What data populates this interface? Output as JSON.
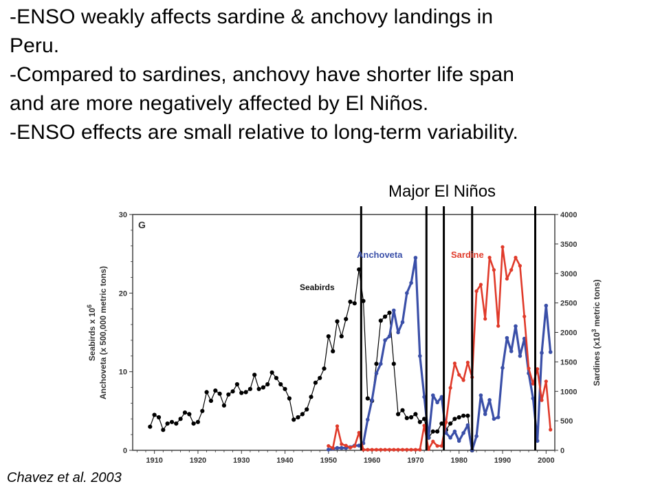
{
  "bullets": [
    "-ENSO weakly affects sardine & anchovy landings in",
    "Peru.",
    "-Compared to sardines, anchovy have shorter life span",
    "and are more negatively affected by El Niños.",
    "-ENSO effects are small relative to long-term variability."
  ],
  "annotation": {
    "el_nino_label": "Major El Niños"
  },
  "citation": "Chavez et al. 2003",
  "chart_data": {
    "type": "line",
    "panel_label": "G",
    "xlabel": "",
    "ylabel_left": "Seabirds x 10⁶ / Anchoveta (x 500,000 metric tons)",
    "ylabel_left_parts": {
      "line1_pre": "Seabirds x 10",
      "line1_sup": "6",
      "line2": "Anchoveta (x 500,000 metric tons)"
    },
    "ylabel_right_parts": {
      "pre": "Sardines (x10",
      "sup": "3",
      "post": " metric tons)"
    },
    "xlim": [
      1905,
      2002
    ],
    "ylim_left": [
      0,
      30
    ],
    "ylim_right": [
      0,
      4000
    ],
    "x_ticks": [
      1910,
      1920,
      1930,
      1940,
      1950,
      1960,
      1970,
      1980,
      1990,
      2000
    ],
    "y_ticks_left": [
      0,
      10,
      20,
      30
    ],
    "y_ticks_right": [
      0,
      500,
      1000,
      1500,
      2000,
      2500,
      3000,
      3500,
      4000
    ],
    "el_nino_years": [
      1957.5,
      1972.5,
      1976.5,
      1983,
      1997.5
    ],
    "series": [
      {
        "name": "Seabirds",
        "axis": "left",
        "color": "#000000",
        "x": [
          1909,
          1910,
          1911,
          1912,
          1913,
          1914,
          1915,
          1916,
          1917,
          1918,
          1919,
          1920,
          1921,
          1922,
          1923,
          1924,
          1925,
          1926,
          1927,
          1928,
          1929,
          1930,
          1931,
          1932,
          1933,
          1934,
          1935,
          1936,
          1937,
          1938,
          1939,
          1940,
          1941,
          1942,
          1943,
          1944,
          1945,
          1946,
          1947,
          1948,
          1949,
          1950,
          1951,
          1952,
          1953,
          1954,
          1955,
          1956,
          1957,
          1958,
          1959,
          1960,
          1961,
          1962,
          1963,
          1964,
          1965,
          1966,
          1967,
          1968,
          1969,
          1970,
          1971,
          1972,
          1973,
          1974,
          1975,
          1976,
          1977,
          1978,
          1979,
          1980,
          1981,
          1982,
          1983
        ],
        "y": [
          3.0,
          4.5,
          4.2,
          2.6,
          3.4,
          3.6,
          3.4,
          4.0,
          4.8,
          4.6,
          3.4,
          3.6,
          5.0,
          7.4,
          6.3,
          7.6,
          7.2,
          5.7,
          7.1,
          7.5,
          8.4,
          7.3,
          7.4,
          7.8,
          9.6,
          7.8,
          8.0,
          8.4,
          9.9,
          9.2,
          8.4,
          7.8,
          6.6,
          3.9,
          4.2,
          4.6,
          5.2,
          6.8,
          8.6,
          9.2,
          10.4,
          14.5,
          12.6,
          16.4,
          14.5,
          16.7,
          18.9,
          18.7,
          23.0,
          19.0,
          6.6,
          6.3,
          11.0,
          16.5,
          17.0,
          17.5,
          11.0,
          4.6,
          5.1,
          4.1,
          4.2,
          4.6,
          3.6,
          4.0,
          1.6,
          2.4,
          2.4,
          3.4,
          2.6,
          3.4,
          4.0,
          4.2,
          4.4,
          4.4,
          0.0
        ]
      },
      {
        "name": "Anchoveta",
        "axis": "left",
        "color": "#3a4fa8",
        "x": [
          1950,
          1951,
          1952,
          1953,
          1954,
          1955,
          1956,
          1957,
          1958,
          1959,
          1960,
          1961,
          1962,
          1963,
          1964,
          1965,
          1966,
          1967,
          1968,
          1969,
          1970,
          1971,
          1972,
          1973,
          1974,
          1975,
          1976,
          1977,
          1978,
          1979,
          1980,
          1981,
          1982,
          1983,
          1984,
          1985,
          1986,
          1987,
          1988,
          1989,
          1990,
          1991,
          1992,
          1993,
          1994,
          1995,
          1996,
          1997,
          1998,
          1999,
          2000,
          2001
        ],
        "y": [
          0.1,
          0.2,
          0.3,
          0.3,
          0.3,
          0.4,
          0.6,
          0.6,
          0.9,
          3.9,
          6.4,
          9.8,
          11.0,
          14.0,
          14.5,
          17.8,
          15.0,
          16.3,
          20.0,
          21.3,
          24.5,
          12.0,
          6.8,
          1.6,
          7.0,
          6.1,
          6.8,
          2.2,
          1.6,
          2.4,
          1.2,
          2.2,
          3.2,
          0.0,
          1.8,
          7.0,
          4.6,
          6.4,
          4.0,
          4.2,
          10.5,
          14.3,
          12.6,
          15.8,
          12.0,
          14.2,
          9.8,
          6.6,
          1.2,
          12.4,
          18.4,
          12.5
        ]
      },
      {
        "name": "Sardine",
        "axis": "right",
        "color": "#e03a2a",
        "x": [
          1950,
          1951,
          1952,
          1953,
          1954,
          1955,
          1956,
          1957,
          1958,
          1959,
          1960,
          1961,
          1962,
          1963,
          1964,
          1965,
          1966,
          1967,
          1968,
          1969,
          1970,
          1971,
          1972,
          1973,
          1974,
          1975,
          1976,
          1977,
          1978,
          1979,
          1980,
          1981,
          1982,
          1983,
          1984,
          1985,
          1986,
          1987,
          1988,
          1989,
          1990,
          1991,
          1992,
          1993,
          1994,
          1995,
          1996,
          1997,
          1998,
          1999,
          2000,
          2001
        ],
        "y": [
          75,
          40,
          410,
          105,
          80,
          45,
          70,
          300,
          10,
          10,
          10,
          10,
          10,
          10,
          10,
          10,
          10,
          10,
          10,
          10,
          10,
          10,
          420,
          20,
          150,
          75,
          75,
          475,
          1060,
          1475,
          1280,
          1190,
          1490,
          1240,
          2700,
          2810,
          2230,
          3270,
          3060,
          2110,
          3450,
          2910,
          3060,
          3270,
          3130,
          2270,
          1390,
          1130,
          1380,
          850,
          1170,
          350
        ]
      }
    ],
    "series_labels": {
      "seabirds": "Seabirds",
      "anchoveta": "Anchoveta",
      "sardine": "Sardine"
    }
  }
}
